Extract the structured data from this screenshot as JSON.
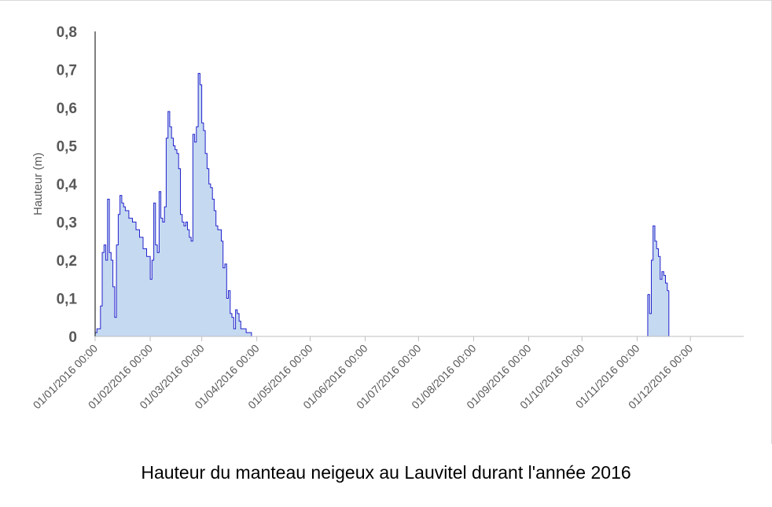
{
  "caption": "Hauteur du manteau neigeux au Lauvitel durant l'année 2016",
  "chart_data": {
    "type": "area",
    "title": "",
    "xlabel": "",
    "ylabel": "Hauteur (m)",
    "ylim": [
      0,
      0.8
    ],
    "yticks": [
      "0",
      "0,1",
      "0,2",
      "0,3",
      "0,4",
      "0,5",
      "0,6",
      "0,7",
      "0,8"
    ],
    "xticks": [
      "01/01/2016 00:00",
      "01/02/2016 00:00",
      "01/03/2016 00:00",
      "01/04/2016 00:00",
      "01/05/2016 00:00",
      "01/06/2016 00:00",
      "01/07/2016 00:00",
      "01/08/2016 00:00",
      "01/09/2016 00:00",
      "01/10/2016 00:00",
      "01/11/2016 00:00",
      "01/12/2016 00:00"
    ],
    "xlim": [
      "2016-01-01",
      "2016-12-31"
    ],
    "grid": false,
    "legend": "none",
    "colors": {
      "line": "#2222cc",
      "fill": "#c5d9f1",
      "axis": "#bfbfbf",
      "text": "#595959"
    },
    "series": [
      {
        "x": [
          "2016-01-01",
          "2016-01-02",
          "2016-01-03",
          "2016-01-04",
          "2016-01-05",
          "2016-01-06",
          "2016-01-07",
          "2016-01-08",
          "2016-01-09",
          "2016-01-10",
          "2016-01-11",
          "2016-01-12",
          "2016-01-13",
          "2016-01-14",
          "2016-01-15",
          "2016-01-16",
          "2016-01-17",
          "2016-01-18",
          "2016-01-20",
          "2016-01-22",
          "2016-01-24",
          "2016-01-26",
          "2016-01-28",
          "2016-01-30",
          "2016-02-01",
          "2016-02-02",
          "2016-02-03",
          "2016-02-04",
          "2016-02-05",
          "2016-02-06",
          "2016-02-07",
          "2016-02-08",
          "2016-02-09",
          "2016-02-10",
          "2016-02-11",
          "2016-02-12",
          "2016-02-13",
          "2016-02-14",
          "2016-02-15",
          "2016-02-16",
          "2016-02-17",
          "2016-02-18",
          "2016-02-19",
          "2016-02-20",
          "2016-02-21",
          "2016-02-22",
          "2016-02-23",
          "2016-02-24",
          "2016-02-25",
          "2016-02-26",
          "2016-02-27",
          "2016-02-28",
          "2016-02-29",
          "2016-03-01",
          "2016-03-02",
          "2016-03-03",
          "2016-03-04",
          "2016-03-05",
          "2016-03-06",
          "2016-03-07",
          "2016-03-08",
          "2016-03-09",
          "2016-03-10",
          "2016-03-11",
          "2016-03-12",
          "2016-03-13",
          "2016-03-14",
          "2016-03-15",
          "2016-03-16",
          "2016-03-17",
          "2016-03-18",
          "2016-03-19",
          "2016-03-20",
          "2016-03-21",
          "2016-03-22",
          "2016-03-23",
          "2016-03-24",
          "2016-03-25",
          "2016-03-26",
          "2016-03-27",
          "2016-03-28",
          "2016-03-29",
          "2016-03-30",
          "2016-03-31",
          "2016-04-01"
        ],
        "y": [
          0.01,
          0.02,
          0.02,
          0.08,
          0.22,
          0.24,
          0.2,
          0.36,
          0.22,
          0.2,
          0.13,
          0.05,
          0.24,
          0.32,
          0.37,
          0.35,
          0.34,
          0.33,
          0.31,
          0.3,
          0.28,
          0.26,
          0.23,
          0.21,
          0.15,
          0.2,
          0.35,
          0.24,
          0.22,
          0.38,
          0.31,
          0.3,
          0.34,
          0.52,
          0.59,
          0.55,
          0.52,
          0.5,
          0.49,
          0.48,
          0.44,
          0.32,
          0.3,
          0.29,
          0.3,
          0.28,
          0.26,
          0.25,
          0.53,
          0.51,
          0.55,
          0.69,
          0.66,
          0.56,
          0.54,
          0.48,
          0.44,
          0.4,
          0.39,
          0.36,
          0.33,
          0.29,
          0.28,
          0.28,
          0.25,
          0.18,
          0.19,
          0.1,
          0.12,
          0.06,
          0.05,
          0.02,
          0.07,
          0.06,
          0.04,
          0.02,
          0.02,
          0.02,
          0.01,
          0.01,
          0.01,
          0.0,
          0.0,
          0.0,
          0.0
        ]
      },
      {
        "x": [
          "2016-11-07",
          "2016-11-08",
          "2016-11-09",
          "2016-11-10",
          "2016-11-11",
          "2016-11-12",
          "2016-11-13",
          "2016-11-14",
          "2016-11-15",
          "2016-11-16",
          "2016-11-17",
          "2016-11-18"
        ],
        "y": [
          0.11,
          0.06,
          0.2,
          0.29,
          0.25,
          0.23,
          0.21,
          0.15,
          0.17,
          0.16,
          0.14,
          0.12
        ]
      }
    ]
  }
}
